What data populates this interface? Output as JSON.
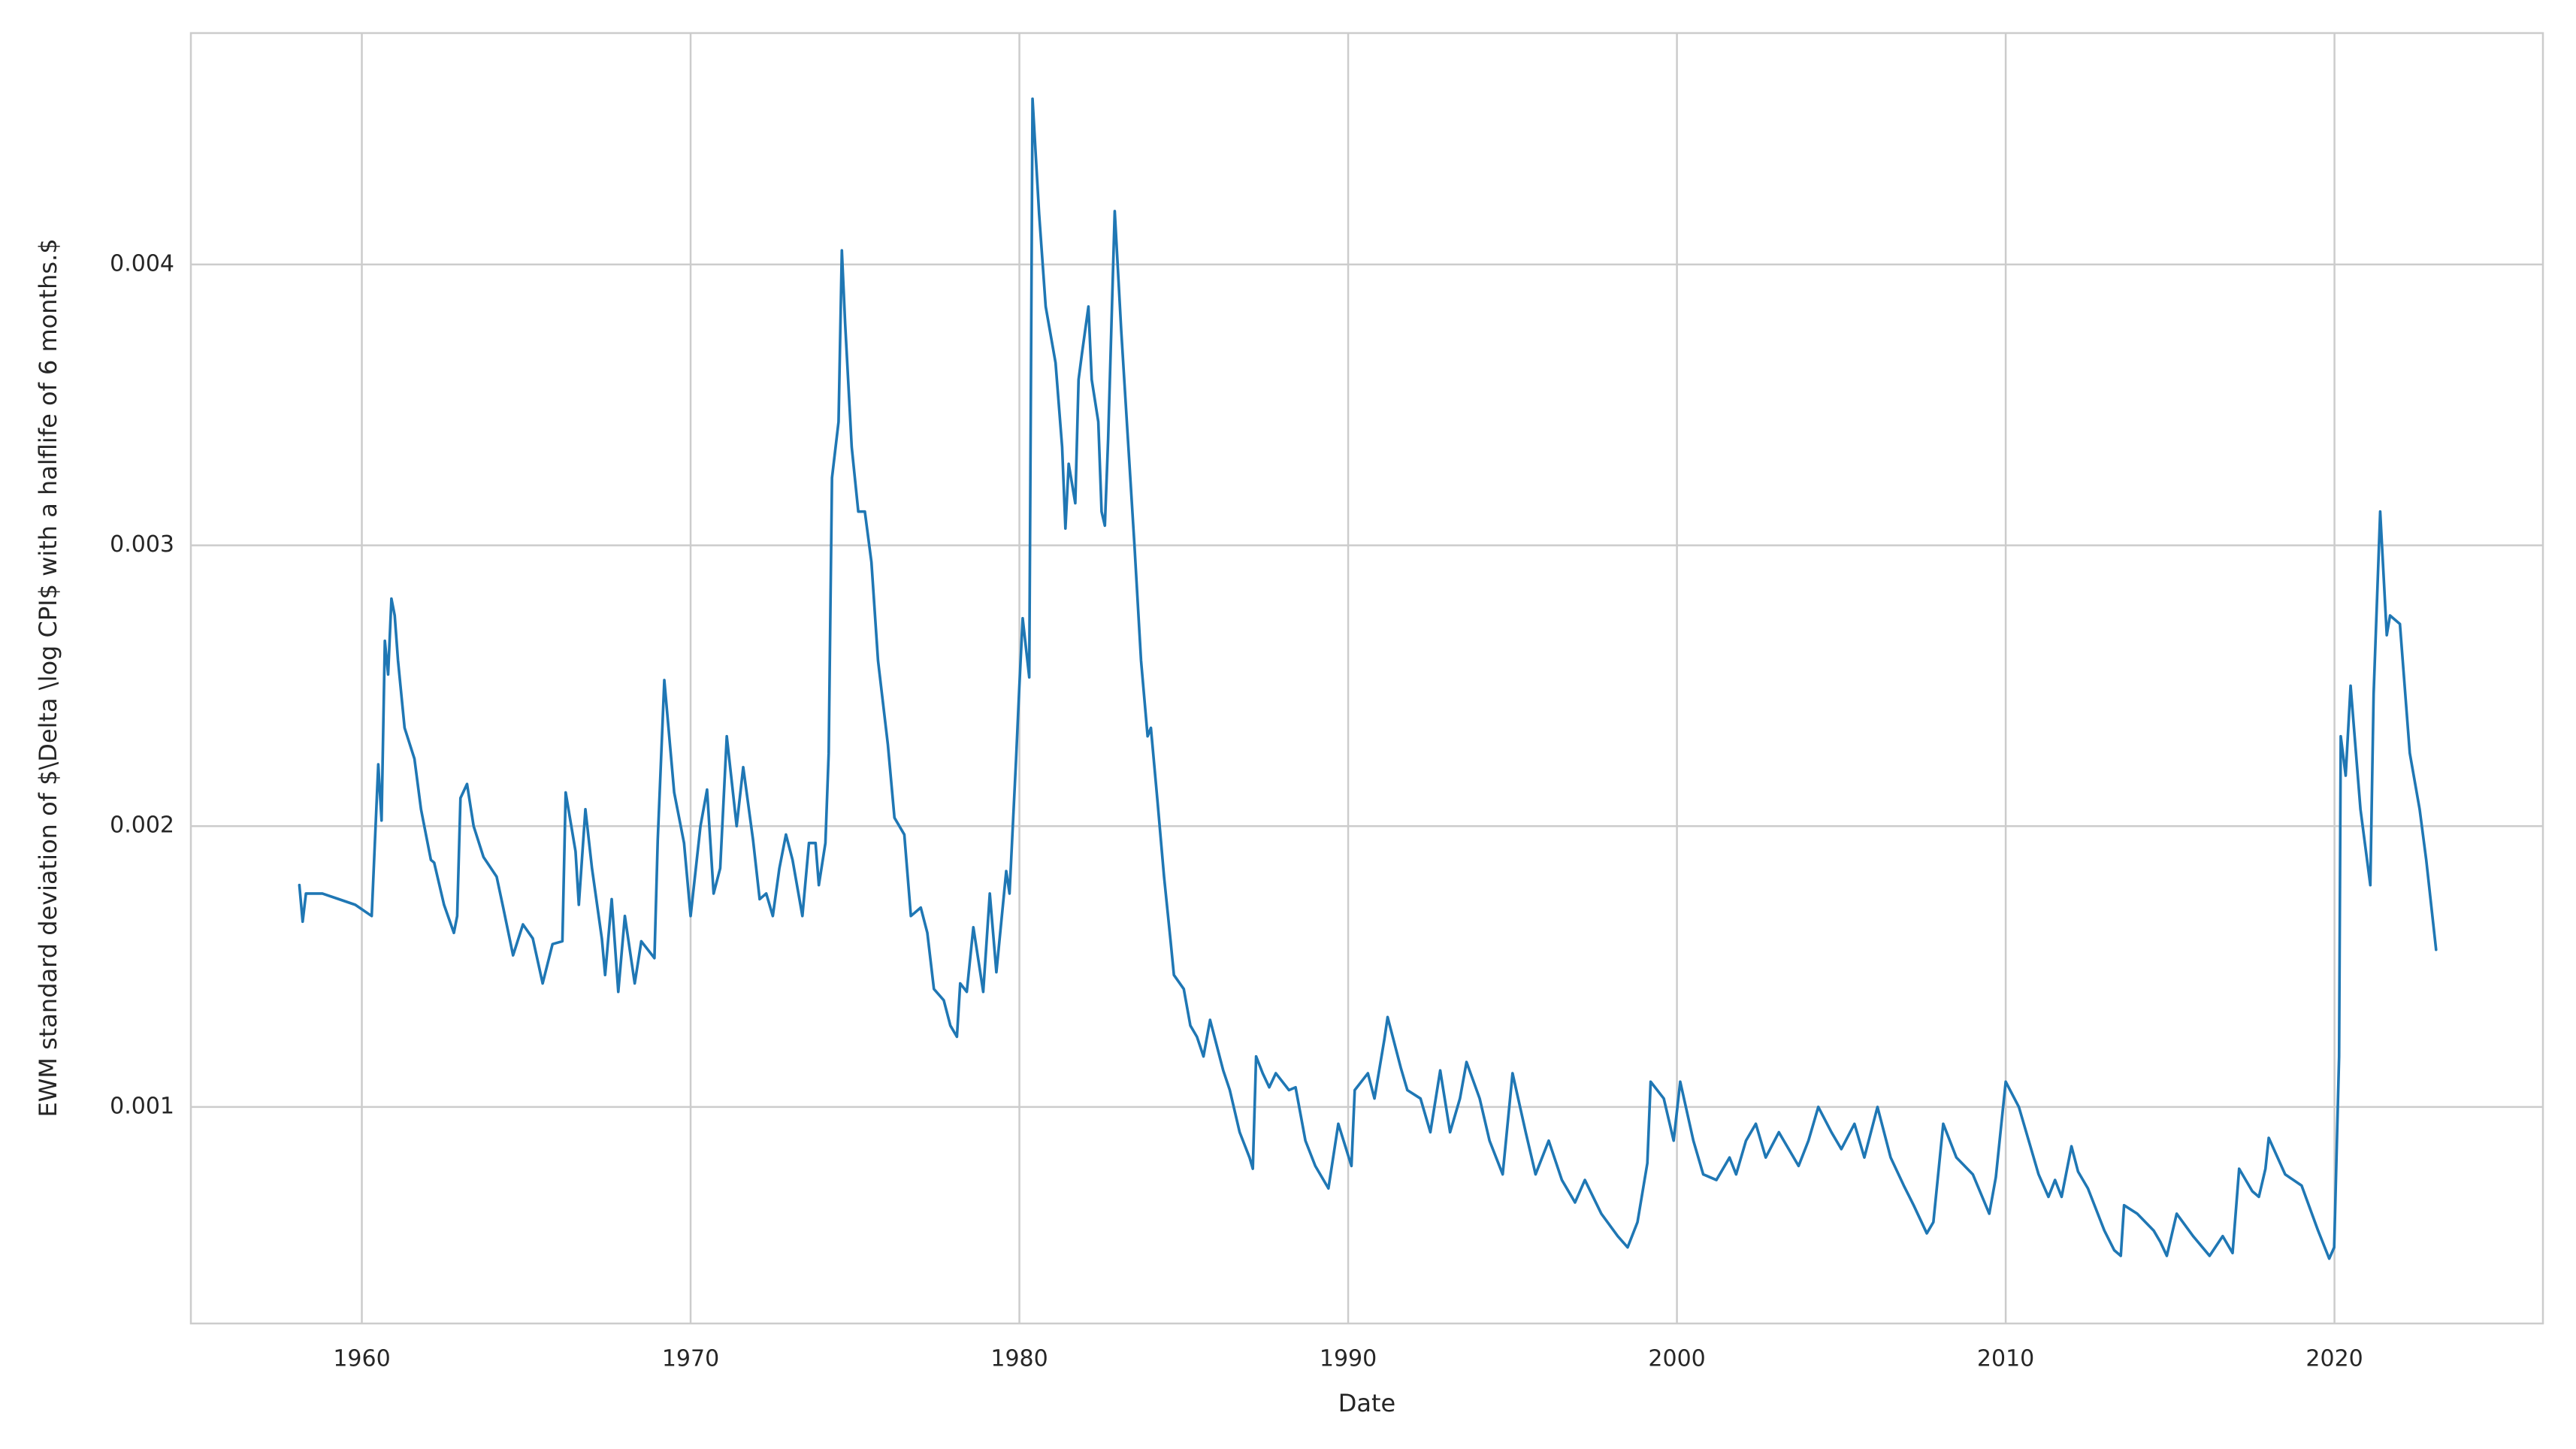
{
  "chart_data": {
    "type": "line",
    "xlabel": "Date",
    "ylabel": "EWM standard deviation of $\\Delta \\log CPI$ with a halflife of 6 months.$",
    "color": "#1f77b4",
    "grid": true,
    "xlim": [
      1954.8,
      2026.34
    ],
    "ylim": [
      0.000229,
      0.004824
    ],
    "xticks": [
      1960,
      1970,
      1980,
      1990,
      2000,
      2010,
      2020
    ],
    "yticks": [
      0.001,
      0.002,
      0.003,
      0.004
    ],
    "x": [
      1958.1,
      1958.2,
      1958.3,
      1958.8,
      1959.3,
      1959.8,
      1960.3,
      1960.5,
      1960.6,
      1960.7,
      1960.8,
      1960.9,
      1961.0,
      1961.1,
      1961.3,
      1961.6,
      1961.8,
      1962.1,
      1962.2,
      1962.5,
      1962.8,
      1962.9,
      1963.0,
      1963.2,
      1963.4,
      1963.7,
      1964.1,
      1964.3,
      1964.6,
      1964.9,
      1965.2,
      1965.5,
      1965.8,
      1966.1,
      1966.2,
      1966.5,
      1966.6,
      1966.8,
      1967.0,
      1967.3,
      1967.4,
      1967.6,
      1967.8,
      1968.0,
      1968.3,
      1968.5,
      1968.9,
      1969.0,
      1969.2,
      1969.5,
      1969.8,
      1970.0,
      1970.3,
      1970.5,
      1970.7,
      1970.9,
      1971.1,
      1971.4,
      1971.6,
      1971.9,
      1972.1,
      1972.3,
      1972.5,
      1972.7,
      1972.9,
      1973.1,
      1973.4,
      1973.6,
      1973.8,
      1973.9,
      1974.1,
      1974.2,
      1974.3,
      1974.5,
      1974.6,
      1974.7,
      1974.9,
      1975.1,
      1975.3,
      1975.5,
      1975.7,
      1976.0,
      1976.2,
      1976.5,
      1976.7,
      1977.0,
      1977.2,
      1977.4,
      1977.7,
      1977.9,
      1978.1,
      1978.2,
      1978.4,
      1978.6,
      1978.9,
      1979.1,
      1979.3,
      1979.6,
      1979.7,
      1979.9,
      1980.0,
      1980.1,
      1980.3,
      1980.4,
      1980.6,
      1980.8,
      1981.1,
      1981.3,
      1981.4,
      1981.5,
      1981.7,
      1981.8,
      1981.9,
      1982.1,
      1982.2,
      1982.4,
      1982.5,
      1982.6,
      1982.7,
      1982.9,
      1983.1,
      1983.3,
      1983.5,
      1983.7,
      1983.9,
      1984.0,
      1984.2,
      1984.4,
      1984.6,
      1984.7,
      1985.0,
      1985.2,
      1985.4,
      1985.6,
      1985.8,
      1986.2,
      1986.4,
      1986.7,
      1987.0,
      1987.1,
      1987.2,
      1987.4,
      1987.6,
      1987.8,
      1988.2,
      1988.4,
      1988.7,
      1989.0,
      1989.4,
      1989.7,
      1990.1,
      1990.2,
      1990.6,
      1990.8,
      1991.1,
      1991.2,
      1991.6,
      1991.8,
      1992.2,
      1992.5,
      1992.8,
      1993.1,
      1993.4,
      1993.6,
      1994.0,
      1994.3,
      1994.7,
      1995.0,
      1995.4,
      1995.7,
      1996.1,
      1996.5,
      1996.9,
      1997.2,
      1997.7,
      1998.2,
      1998.5,
      1998.8,
      1999.1,
      1999.2,
      1999.6,
      1999.9,
      2000.1,
      2000.5,
      2000.8,
      2001.2,
      2001.6,
      2001.8,
      2002.1,
      2002.4,
      2002.7,
      2003.1,
      2003.4,
      2003.7,
      2004.0,
      2004.3,
      2004.7,
      2005.0,
      2005.4,
      2005.7,
      2006.1,
      2006.5,
      2006.9,
      2007.2,
      2007.6,
      2007.8,
      2008.1,
      2008.5,
      2009.0,
      2009.5,
      2009.7,
      2010.0,
      2010.4,
      2010.7,
      2011.0,
      2011.3,
      2011.5,
      2011.7,
      2012.0,
      2012.2,
      2012.5,
      2013.0,
      2013.3,
      2013.5,
      2013.6,
      2014.0,
      2014.5,
      2014.7,
      2014.9,
      2015.2,
      2015.7,
      2016.2,
      2016.6,
      2016.9,
      2017.1,
      2017.5,
      2017.7,
      2017.9,
      2018.0,
      2018.5,
      2019.0,
      2019.5,
      2019.84,
      2019.99,
      2020.14,
      2020.19,
      2020.34,
      2020.49,
      2020.79,
      2021.09,
      2021.19,
      2021.39,
      2021.59,
      2021.69,
      2021.99,
      2022.29,
      2022.59,
      2022.79,
      2023.09
    ],
    "values": [
      0.00179,
      0.00166,
      0.00176,
      0.00176,
      0.00174,
      0.00172,
      0.00168,
      0.00222,
      0.00202,
      0.00266,
      0.00254,
      0.00281,
      0.00275,
      0.00259,
      0.00235,
      0.00224,
      0.00206,
      0.00188,
      0.00187,
      0.00172,
      0.00162,
      0.00168,
      0.0021,
      0.00215,
      0.002,
      0.00189,
      0.00182,
      0.00171,
      0.00154,
      0.00165,
      0.0016,
      0.00144,
      0.00158,
      0.00159,
      0.00212,
      0.00191,
      0.00172,
      0.00206,
      0.00185,
      0.0016,
      0.00147,
      0.00174,
      0.00141,
      0.00168,
      0.00144,
      0.00159,
      0.00153,
      0.00195,
      0.00252,
      0.00212,
      0.00194,
      0.00168,
      0.002,
      0.00213,
      0.00176,
      0.00185,
      0.00232,
      0.002,
      0.00221,
      0.00195,
      0.00174,
      0.00176,
      0.00168,
      0.00185,
      0.00197,
      0.00188,
      0.00168,
      0.00194,
      0.00194,
      0.00179,
      0.00194,
      0.00226,
      0.00324,
      0.00344,
      0.00405,
      0.00379,
      0.00335,
      0.00312,
      0.00312,
      0.00294,
      0.00259,
      0.00229,
      0.00203,
      0.00197,
      0.00168,
      0.00171,
      0.00162,
      0.00142,
      0.00138,
      0.00129,
      0.00125,
      0.00144,
      0.00141,
      0.00164,
      0.00141,
      0.00176,
      0.00148,
      0.00184,
      0.00176,
      0.00224,
      0.0025,
      0.00274,
      0.00253,
      0.00459,
      0.00418,
      0.00385,
      0.00365,
      0.00335,
      0.00306,
      0.00329,
      0.00315,
      0.00359,
      0.00368,
      0.00385,
      0.00359,
      0.00344,
      0.00312,
      0.00307,
      0.00338,
      0.00419,
      0.00376,
      0.00338,
      0.003,
      0.00259,
      0.00232,
      0.00235,
      0.00209,
      0.00182,
      0.00159,
      0.00147,
      0.00142,
      0.00129,
      0.00125,
      0.00118,
      0.00131,
      0.00113,
      0.00106,
      0.00091,
      0.00082,
      0.00078,
      0.00118,
      0.00112,
      0.00107,
      0.00112,
      0.00106,
      0.00107,
      0.00088,
      0.00079,
      0.00071,
      0.00094,
      0.00079,
      0.00106,
      0.00112,
      0.00103,
      0.00124,
      0.00132,
      0.00114,
      0.00106,
      0.00103,
      0.00091,
      0.00113,
      0.00091,
      0.00103,
      0.00116,
      0.00103,
      0.00088,
      0.00076,
      0.00112,
      0.00091,
      0.00076,
      0.00088,
      0.00074,
      0.00066,
      0.00074,
      0.00062,
      0.00054,
      0.0005,
      0.00059,
      0.0008,
      0.00109,
      0.00103,
      0.00088,
      0.00109,
      0.00088,
      0.00076,
      0.00074,
      0.00082,
      0.00076,
      0.00088,
      0.00094,
      0.00082,
      0.00091,
      0.00085,
      0.00079,
      0.00088,
      0.001,
      0.00091,
      0.00085,
      0.00094,
      0.00082,
      0.001,
      0.00082,
      0.00072,
      0.00065,
      0.00055,
      0.00059,
      0.00094,
      0.00082,
      0.00076,
      0.00062,
      0.00075,
      0.00109,
      0.001,
      0.00088,
      0.00076,
      0.00068,
      0.00074,
      0.00068,
      0.00086,
      0.00077,
      0.00071,
      0.00056,
      0.00049,
      0.00047,
      0.00065,
      0.00062,
      0.00056,
      0.00052,
      0.00047,
      0.00062,
      0.00054,
      0.00047,
      0.00054,
      0.00048,
      0.00078,
      0.0007,
      0.00068,
      0.00078,
      0.00089,
      0.00076,
      0.00072,
      0.00056,
      0.00046,
      0.0005,
      0.00118,
      0.00232,
      0.00218,
      0.0025,
      0.00206,
      0.00179,
      0.00247,
      0.00312,
      0.00268,
      0.00275,
      0.00272,
      0.00226,
      0.00206,
      0.00188,
      0.00156
    ]
  }
}
